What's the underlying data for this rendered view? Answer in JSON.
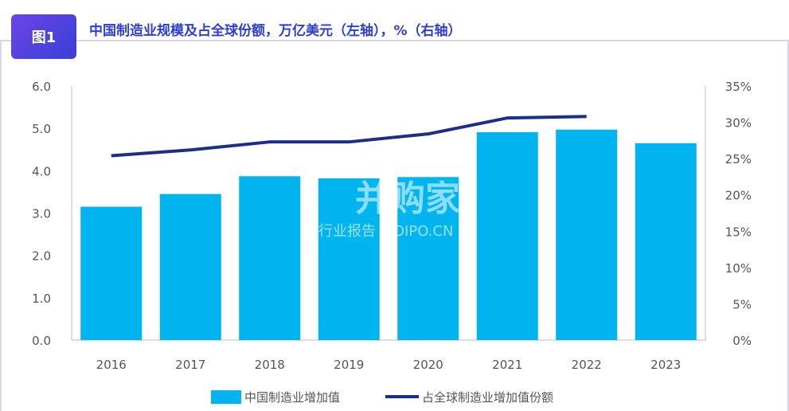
{
  "header": {
    "badge": "图1",
    "title": "中国制造业规模及占全球份额，万亿美元（左轴），%（右轴）"
  },
  "watermark": {
    "main": "并购家",
    "sub": "行业报告 IPOIPO.CN"
  },
  "chart_data": {
    "type": "bar",
    "categories": [
      "2016",
      "2017",
      "2018",
      "2019",
      "2020",
      "2021",
      "2022",
      "2023"
    ],
    "series": [
      {
        "name": "中国制造业增加值",
        "type": "bar",
        "axis": "left",
        "color": "#00b4f0",
        "values": [
          3.15,
          3.45,
          3.87,
          3.82,
          3.85,
          4.91,
          4.97,
          4.65
        ]
      },
      {
        "name": "占全球制造业增加值份额",
        "type": "line",
        "axis": "right",
        "color": "#1b2f8a",
        "values": [
          25.4,
          26.2,
          27.3,
          27.3,
          28.4,
          30.6,
          30.8,
          null
        ]
      }
    ],
    "left_axis": {
      "ylim": [
        0,
        6
      ],
      "ticks": [
        "0.0",
        "1.0",
        "2.0",
        "3.0",
        "4.0",
        "5.0",
        "6.0"
      ]
    },
    "right_axis": {
      "ylim": [
        0,
        35
      ],
      "ticks": [
        "0%",
        "5%",
        "10%",
        "15%",
        "20%",
        "25%",
        "30%",
        "35%"
      ]
    },
    "grid": false,
    "legend": "bottom-center"
  }
}
